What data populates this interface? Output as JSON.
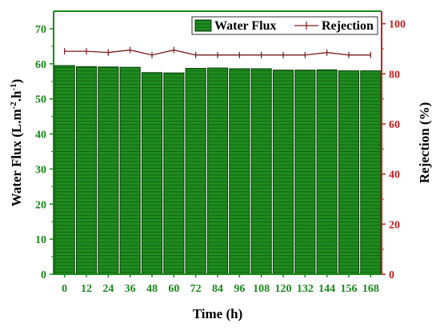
{
  "chart_data": {
    "type": "bar",
    "categories": [
      "0",
      "12",
      "24",
      "36",
      "48",
      "60",
      "72",
      "84",
      "96",
      "108",
      "120",
      "132",
      "144",
      "156",
      "168"
    ],
    "series": [
      {
        "name": "Water Flux",
        "type": "bar",
        "axis": "left",
        "values": [
          59.5,
          59.2,
          59.1,
          59.0,
          57.5,
          57.4,
          58.7,
          58.8,
          58.6,
          58.6,
          58.2,
          58.2,
          58.3,
          58.0,
          58.0
        ]
      },
      {
        "name": "Rejection",
        "type": "line",
        "axis": "right",
        "values": [
          89,
          89,
          88.5,
          89.5,
          87.5,
          89.5,
          87.5,
          87.5,
          87.5,
          87.5,
          87.5,
          87.5,
          88.5,
          87.5,
          87.5
        ]
      }
    ],
    "xlabel": "Time (h)",
    "ylabel_left_parts": [
      "Water Flux (L.m",
      "-2",
      ".h",
      "-1",
      ")"
    ],
    "ylabel_right": "Rejection (%)",
    "ylim_left": [
      0,
      75
    ],
    "yticks_left": [
      0,
      10,
      20,
      30,
      40,
      50,
      60,
      70
    ],
    "ylim_right": [
      0,
      105
    ],
    "yticks_right": [
      0,
      20,
      40,
      60,
      80,
      100
    ],
    "grid": false,
    "legend_position": "top-right",
    "colors": {
      "bar_fill": "#1e8c1e",
      "bar_edge": "#0a3d0a",
      "bar_hatch": "#0f5a0f",
      "line": "#7a1a1a",
      "left_axis": "#1a8a1a",
      "right_axis": "#c0211f",
      "bottom_axis": "#1a8a1a"
    }
  }
}
